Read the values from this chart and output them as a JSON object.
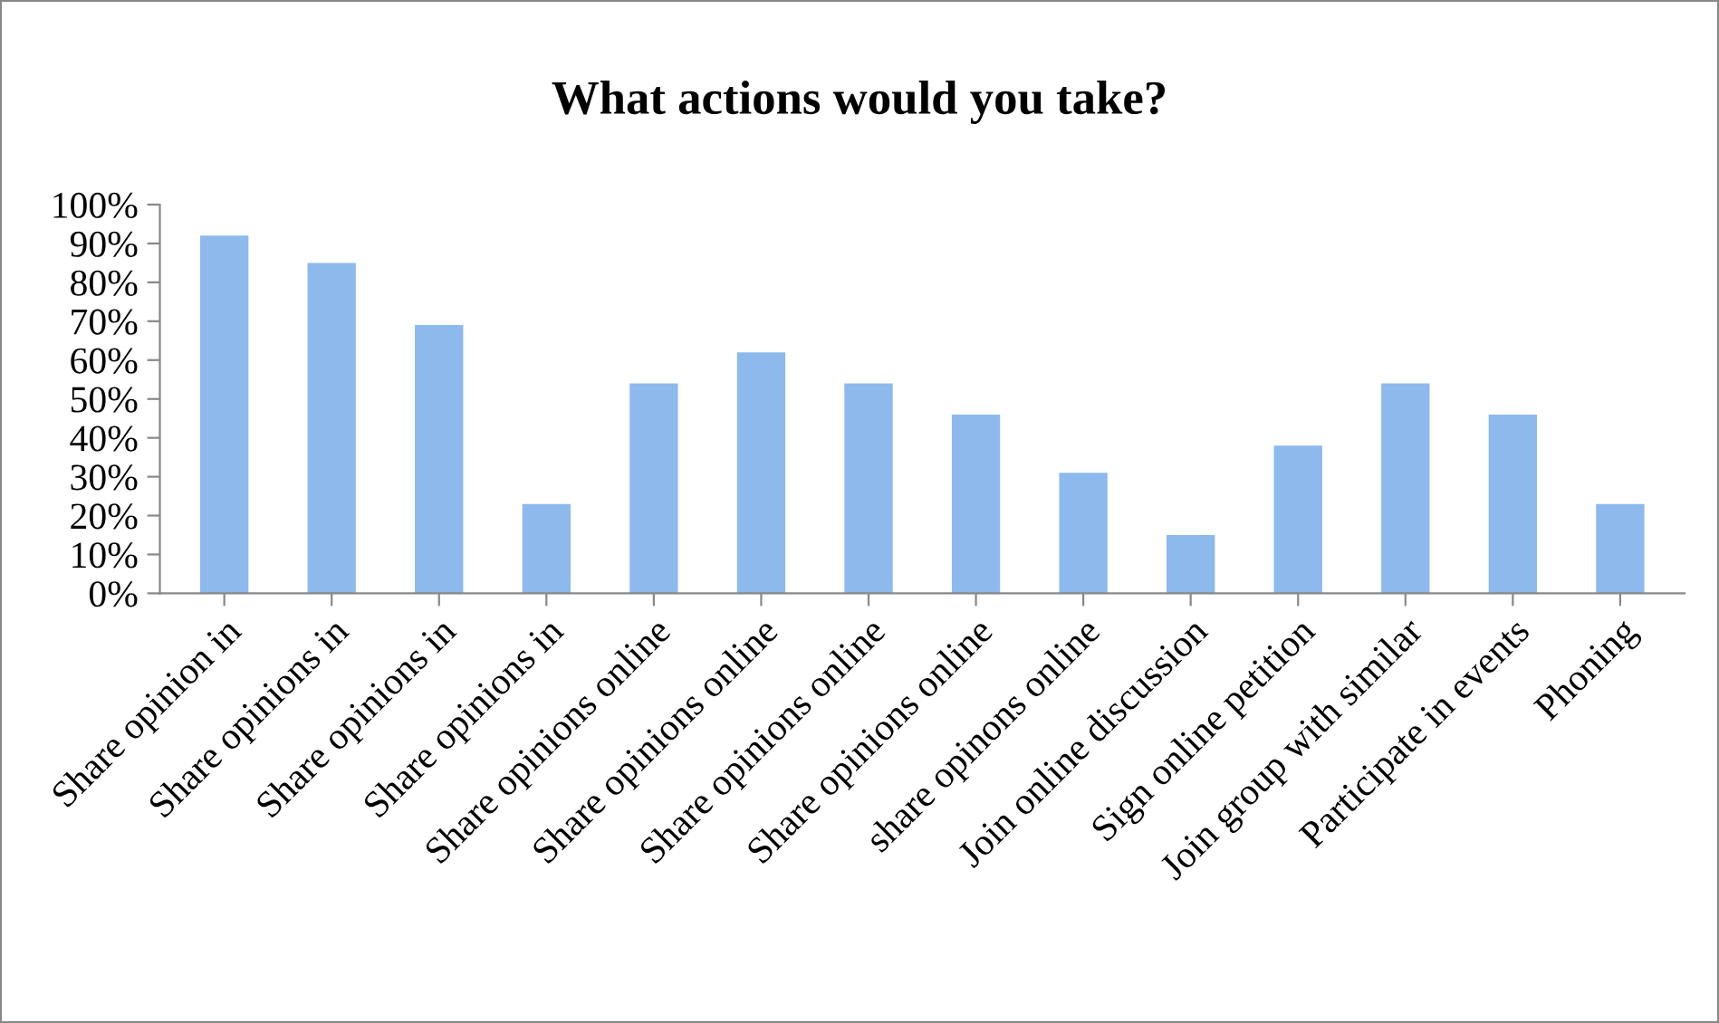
{
  "chart_data": {
    "type": "bar",
    "title": "What actions would you take?",
    "categories": [
      "Share opinion in",
      "Share opinions in",
      "Share opinions in",
      "Share opinions in",
      "Share opinions online",
      "Share opinions online",
      "Share opinions online",
      "Share opinions online",
      "share opinons online",
      "Join online discussion",
      "Sign online petition",
      "Join group with similar",
      "Participate in events",
      "Phoning"
    ],
    "values": [
      92,
      85,
      69,
      23,
      54,
      62,
      54,
      46,
      31,
      15,
      38,
      54,
      46,
      23
    ],
    "color": "#8db9ec",
    "ylim": [
      0,
      100
    ],
    "yticks": [
      {
        "value": 0,
        "label": "0%"
      },
      {
        "value": 10,
        "label": "10%"
      },
      {
        "value": 20,
        "label": "20%"
      },
      {
        "value": 30,
        "label": "30%"
      },
      {
        "value": 40,
        "label": "40%"
      },
      {
        "value": 50,
        "label": "50%"
      },
      {
        "value": 60,
        "label": "60%"
      },
      {
        "value": 70,
        "label": "70%"
      },
      {
        "value": 80,
        "label": "80%"
      },
      {
        "value": 90,
        "label": "90%"
      },
      {
        "value": 100,
        "label": "100%"
      }
    ],
    "grid": false,
    "legend": false
  }
}
